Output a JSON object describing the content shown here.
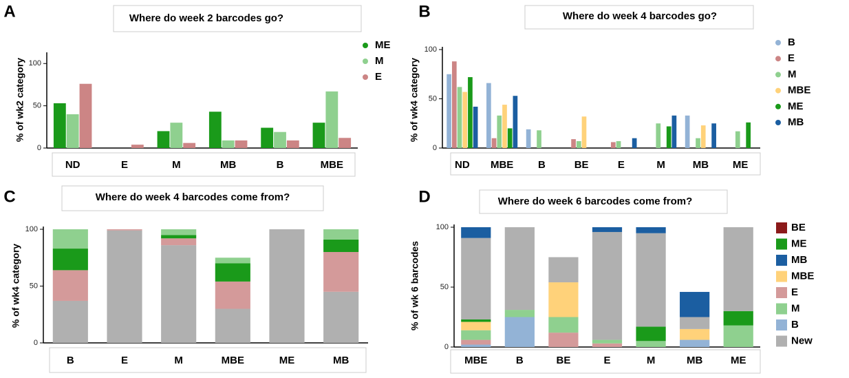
{
  "chart_data": [
    {
      "type": "bar",
      "panel": "A",
      "title": "Where do week 2 barcodes go?",
      "ylabel": "% of  wk2 category",
      "categories": [
        "ND",
        "E",
        "M",
        "MB",
        "B",
        "MBE"
      ],
      "series": [
        {
          "name": "ME",
          "color": "#1a9a1a",
          "values": [
            53,
            0,
            20,
            43,
            24,
            30
          ]
        },
        {
          "name": "M",
          "color": "#8fd08f",
          "values": [
            40,
            0,
            30,
            9,
            19,
            67
          ]
        },
        {
          "name": "E",
          "color": "#cc8585",
          "values": [
            76,
            4,
            6,
            9,
            9,
            12
          ]
        }
      ],
      "ylim": [
        0,
        110
      ],
      "yticks": [
        0,
        50,
        100
      ]
    },
    {
      "type": "bar",
      "panel": "B",
      "title": "Where do week 4 barcodes go?",
      "ylabel": "% of  wk4 category",
      "categories": [
        "ND",
        "MBE",
        "B",
        "BE",
        "E",
        "M",
        "MB",
        "ME"
      ],
      "series": [
        {
          "name": "B",
          "color": "#93b3d6",
          "values": [
            75,
            66,
            19,
            0,
            0,
            0,
            33,
            0
          ]
        },
        {
          "name": "E",
          "color": "#cc8585",
          "values": [
            88,
            10,
            0,
            9,
            6,
            0,
            0,
            0
          ]
        },
        {
          "name": "M",
          "color": "#8fd08f",
          "values": [
            62,
            33,
            18,
            7,
            7,
            25,
            10,
            17
          ]
        },
        {
          "name": "MBE",
          "color": "#ffd27a",
          "values": [
            57,
            44,
            0,
            32,
            0,
            0,
            23,
            0
          ]
        },
        {
          "name": "ME",
          "color": "#1a9a1a",
          "values": [
            72,
            20,
            0,
            0,
            0,
            22,
            0,
            26
          ]
        },
        {
          "name": "MB",
          "color": "#1b5ea1",
          "values": [
            42,
            53,
            0,
            0,
            10,
            33,
            25,
            0
          ]
        }
      ],
      "ylim": [
        0,
        100
      ],
      "yticks": [
        0,
        50,
        100
      ]
    },
    {
      "type": "stacked_bar",
      "panel": "C",
      "title": "Where do week 4 barcodes come from?",
      "ylabel": "% of wk4 category",
      "categories": [
        "B",
        "E",
        "M",
        "MBE",
        "ME",
        "MB"
      ],
      "series": [
        {
          "name": "New",
          "color": "#b0b0b0",
          "values": [
            37,
            99,
            86,
            30,
            100,
            45
          ]
        },
        {
          "name": "E",
          "color": "#d49a9a",
          "values": [
            27,
            1,
            6,
            24,
            0,
            35
          ]
        },
        {
          "name": "ME",
          "color": "#1a9a1a",
          "values": [
            19,
            0,
            3,
            16,
            0,
            11
          ]
        },
        {
          "name": "M",
          "color": "#8fd08f",
          "values": [
            17,
            0,
            5,
            5,
            0,
            9
          ]
        }
      ],
      "ylim": [
        0,
        100
      ],
      "yticks": [
        0,
        50,
        100
      ]
    },
    {
      "type": "stacked_bar",
      "panel": "D",
      "title": "Where do week 6 barcodes come from?",
      "ylabel": "% of wk 6 barcodes",
      "categories": [
        "MBE",
        "B",
        "BE",
        "E",
        "M",
        "MB",
        "ME"
      ],
      "series": [
        {
          "name": "B",
          "color": "#93b3d6",
          "values": [
            2,
            25,
            0,
            0,
            0,
            6,
            0
          ]
        },
        {
          "name": "E",
          "color": "#d49a9a",
          "values": [
            4,
            0,
            12,
            3,
            0,
            0,
            0
          ]
        },
        {
          "name": "M",
          "color": "#8fd08f",
          "values": [
            8,
            6,
            13,
            3,
            5,
            0,
            18
          ]
        },
        {
          "name": "MBE",
          "color": "#ffd27a",
          "values": [
            7,
            0,
            29,
            0,
            0,
            9,
            0
          ]
        },
        {
          "name": "ME",
          "color": "#1a9a1a",
          "values": [
            2,
            0,
            0,
            0,
            12,
            0,
            12
          ]
        },
        {
          "name": "New",
          "color": "#b0b0b0",
          "values": [
            68,
            69,
            21,
            90,
            78,
            10,
            70
          ]
        },
        {
          "name": "MB",
          "color": "#1b5ea1",
          "values": [
            9,
            0,
            0,
            4,
            5,
            21,
            0
          ]
        },
        {
          "name": "BE",
          "color": "#8b1a1a",
          "values": [
            0,
            0,
            0,
            0,
            0,
            0,
            0
          ]
        }
      ],
      "ylim": [
        0,
        100
      ],
      "yticks": [
        0,
        50,
        100
      ]
    }
  ]
}
